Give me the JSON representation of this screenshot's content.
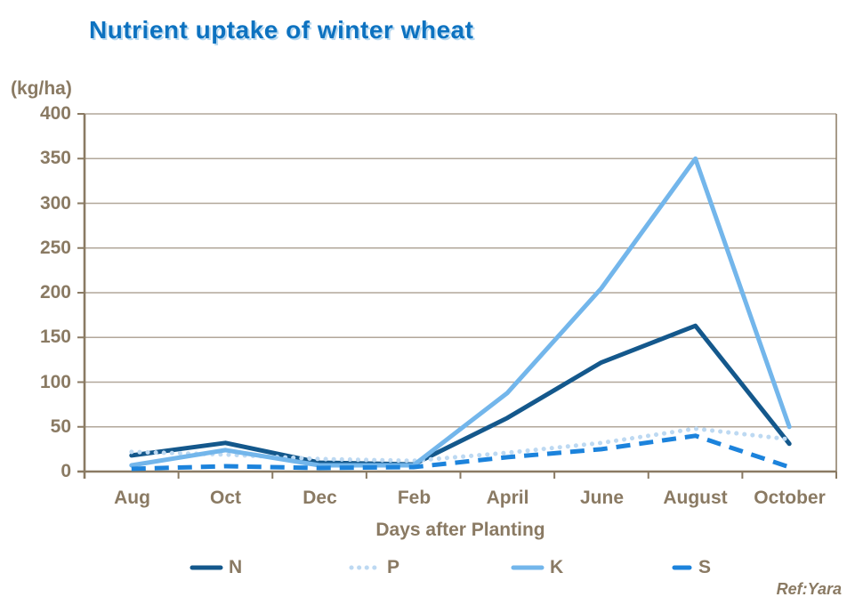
{
  "colors": {
    "title": "#0d72c0",
    "axis_text": "#8a7a63",
    "axis_line": "#8a7a63",
    "gridline": "#b2a79a",
    "background": "#ffffff"
  },
  "chart_data": {
    "type": "line",
    "title": "Nutrient uptake of winter wheat",
    "unit_label": "(kg/ha)",
    "xlabel": "Days after Planting",
    "source": "Ref:Yara",
    "categories": [
      "Aug",
      "Oct",
      "Dec",
      "Feb",
      "April",
      "June",
      "August",
      "October"
    ],
    "yticks": [
      0,
      50,
      100,
      150,
      200,
      250,
      300,
      350,
      400
    ],
    "ylim": [
      0,
      400
    ],
    "grid": "horizontal",
    "legend_position": "bottom",
    "series": [
      {
        "name": "N",
        "style": "solid",
        "color": "#14588c",
        "values": [
          18,
          32,
          10,
          8,
          60,
          122,
          163,
          31
        ]
      },
      {
        "name": "P",
        "style": "dotted",
        "color": "#bdd9f2",
        "values": [
          22,
          19,
          14,
          12,
          21,
          32,
          48,
          36
        ]
      },
      {
        "name": "K",
        "style": "solid",
        "color": "#73b6eb",
        "values": [
          7,
          24,
          7,
          7,
          88,
          205,
          350,
          50
        ]
      },
      {
        "name": "S",
        "style": "dashed",
        "color": "#1c83dc",
        "values": [
          3,
          6,
          4,
          5,
          16,
          25,
          40,
          5
        ]
      }
    ]
  }
}
